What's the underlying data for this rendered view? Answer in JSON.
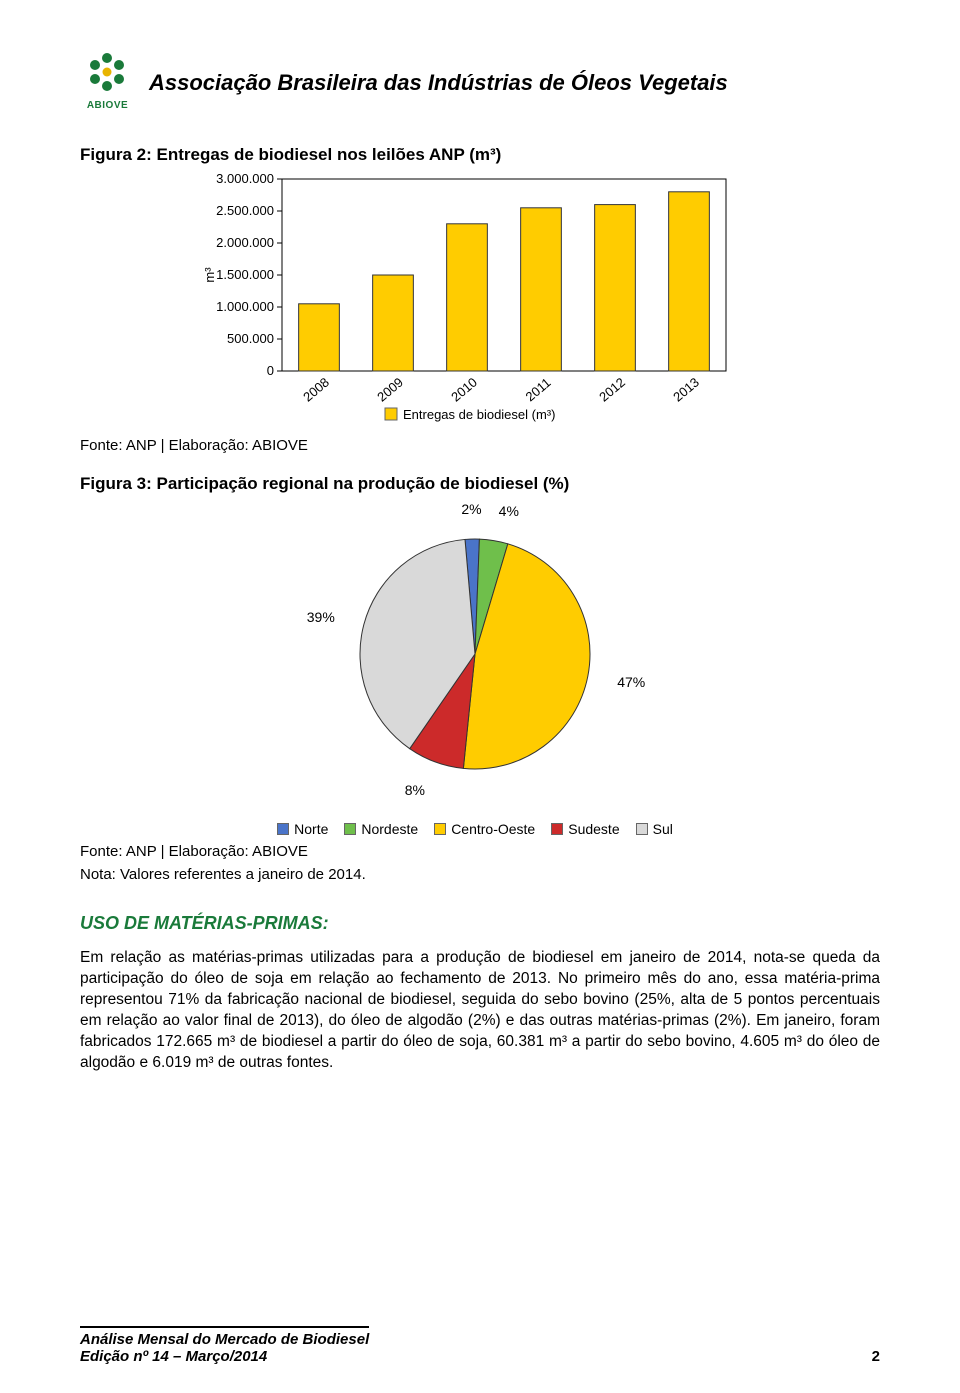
{
  "header": {
    "logo_label": "ABIOVE",
    "org_title": "Associação Brasileira das Indústrias de Óleos Vegetais"
  },
  "figure2": {
    "title": "Figura 2: Entregas de biodiesel nos leilões ANP (m³)",
    "type": "bar",
    "y_axis_label": "m³",
    "series_label": "Entregas de biodiesel (m³)",
    "categories": [
      "2008",
      "2009",
      "2010",
      "2011",
      "2012",
      "2013"
    ],
    "values": [
      1050000,
      1500000,
      2300000,
      2550000,
      2600000,
      2800000
    ],
    "bar_fill": "#ffcc00",
    "bar_border": "#333333",
    "ylim": [
      0,
      3000000
    ],
    "y_ticks": [
      0,
      500000,
      1000000,
      1500000,
      2000000,
      2500000,
      3000000
    ],
    "y_tick_labels": [
      "0",
      "500.000",
      "1.000.000",
      "1.500.000",
      "2.000.000",
      "2.500.000",
      "3.000.000"
    ],
    "background": "#ffffff",
    "axis_color": "#000000",
    "bar_width_ratio": 0.55,
    "legend_marker_border": "#666666",
    "source": "Fonte: ANP | Elaboração: ABIOVE"
  },
  "figure3": {
    "title": "Figura 3: Participação regional na produção de biodiesel (%)",
    "type": "pie",
    "slices": [
      {
        "label": "Norte",
        "value": 2,
        "color": "#4a74c9",
        "anno": "2%"
      },
      {
        "label": "Nordeste",
        "value": 4,
        "color": "#6fbf4b",
        "anno": "4%"
      },
      {
        "label": "Centro-Oeste",
        "value": 47,
        "color": "#ffcc00",
        "anno": "47%"
      },
      {
        "label": "Sudeste",
        "value": 8,
        "color": "#cc2a2a",
        "anno": "8%"
      },
      {
        "label": "Sul",
        "value": 39,
        "color": "#d9d9d9",
        "anno": "39%"
      }
    ],
    "start_angle_deg": -95,
    "stroke_color": "#333333",
    "anno_fontsize": 14,
    "source": "Fonte: ANP | Elaboração: ABIOVE",
    "note": "Nota: Valores referentes a janeiro de 2014."
  },
  "section": {
    "title": "USO DE MATÉRIAS-PRIMAS:",
    "paragraph": "Em relação as matérias-primas utilizadas para a produção de biodiesel em janeiro de 2014, nota-se queda da participação do óleo de soja em relação ao fechamento de 2013. No primeiro mês do ano, essa matéria-prima representou 71% da fabricação nacional de biodiesel, seguida do sebo bovino (25%, alta de 5 pontos percentuais em relação ao valor final de 2013), do óleo de algodão (2%) e das outras matérias-primas (2%). Em janeiro, foram fabricados 172.665 m³ de biodiesel a partir do óleo de soja, 60.381 m³ a partir do sebo bovino, 4.605 m³ do óleo de algodão e 6.019 m³ de outras fontes."
  },
  "footer": {
    "line1": "Análise Mensal do Mercado de Biodiesel",
    "line2": "Edição nº 14 – Março/2014",
    "page": "2"
  }
}
